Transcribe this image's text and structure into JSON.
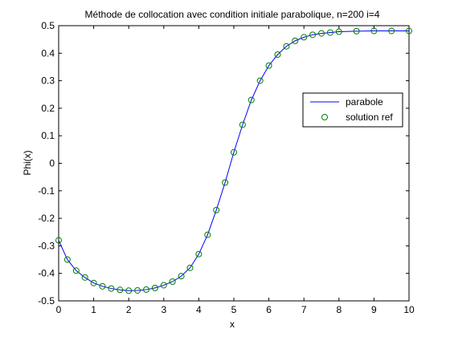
{
  "chart_data": {
    "type": "line",
    "title": "Méthode de collocation avec condition initiale parabolique, n=200 i=4",
    "xlabel": "x",
    "ylabel": "Phi(x)",
    "xlim": [
      0,
      10
    ],
    "ylim": [
      -0.5,
      0.5
    ],
    "xticks": [
      "0",
      "1",
      "2",
      "3",
      "4",
      "5",
      "6",
      "7",
      "8",
      "9",
      "10"
    ],
    "yticks": [
      "0.5",
      "0.4",
      "0.3",
      "0.2",
      "0.1",
      "0",
      "-0.1",
      "-0.2",
      "-0.3",
      "-0.4",
      "-0.5"
    ],
    "grid": false,
    "legend_position": "right",
    "series": [
      {
        "name": "parabole",
        "style": "line",
        "color": "#0000ff",
        "x": [
          0,
          0.25,
          0.5,
          0.75,
          1,
          1.25,
          1.5,
          1.75,
          2,
          2.25,
          2.5,
          2.75,
          3,
          3.25,
          3.5,
          3.75,
          4,
          4.25,
          4.5,
          4.75,
          5,
          5.25,
          5.5,
          5.75,
          6,
          6.25,
          6.5,
          6.75,
          7,
          7.25,
          7.5,
          7.75,
          8,
          8.5,
          9,
          9.5,
          10
        ],
        "y": [
          -0.28,
          -0.35,
          -0.39,
          -0.415,
          -0.435,
          -0.447,
          -0.455,
          -0.46,
          -0.463,
          -0.462,
          -0.459,
          -0.453,
          -0.443,
          -0.43,
          -0.41,
          -0.38,
          -0.33,
          -0.26,
          -0.17,
          -0.07,
          0.04,
          0.14,
          0.23,
          0.3,
          0.355,
          0.395,
          0.425,
          0.445,
          0.458,
          0.467,
          0.472,
          0.475,
          0.478,
          0.48,
          0.481,
          0.481,
          0.481
        ]
      },
      {
        "name": "solution ref",
        "style": "markers",
        "color": "#008000",
        "x": [
          0,
          0.25,
          0.5,
          0.75,
          1,
          1.25,
          1.5,
          1.75,
          2,
          2.25,
          2.5,
          2.75,
          3,
          3.25,
          3.5,
          3.75,
          4,
          4.25,
          4.5,
          4.75,
          5,
          5.25,
          5.5,
          5.75,
          6,
          6.25,
          6.5,
          6.75,
          7,
          7.25,
          7.5,
          7.75,
          8,
          8.5,
          9,
          9.5,
          10
        ],
        "y": [
          -0.28,
          -0.35,
          -0.39,
          -0.415,
          -0.435,
          -0.447,
          -0.455,
          -0.46,
          -0.463,
          -0.462,
          -0.459,
          -0.453,
          -0.443,
          -0.43,
          -0.41,
          -0.38,
          -0.33,
          -0.26,
          -0.17,
          -0.07,
          0.04,
          0.14,
          0.23,
          0.3,
          0.355,
          0.395,
          0.425,
          0.445,
          0.458,
          0.467,
          0.472,
          0.475,
          0.478,
          0.48,
          0.481,
          0.481,
          0.481
        ]
      }
    ]
  }
}
